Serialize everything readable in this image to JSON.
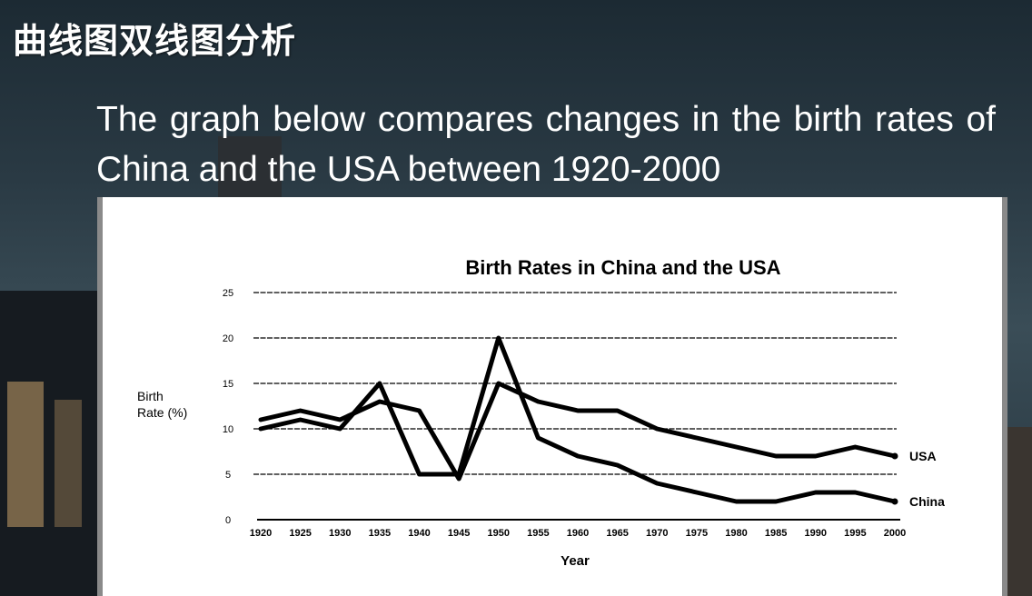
{
  "slide": {
    "title": "曲线图双线图分析",
    "text": "The graph below compares changes in the birth rates of China and the USA between 1920-2000"
  },
  "chart_data": {
    "type": "line",
    "title": "Birth Rates in China and the USA",
    "xlabel": "Year",
    "ylabel": "Birth\nRate (%)",
    "x": [
      1920,
      1925,
      1930,
      1935,
      1940,
      1945,
      1950,
      1955,
      1960,
      1965,
      1970,
      1975,
      1980,
      1985,
      1990,
      1995,
      2000
    ],
    "x_tick_labels": [
      "1920",
      "1925",
      "1930",
      "1935",
      "1940",
      "1945",
      "1950",
      "1955",
      "1960",
      "1965",
      "1970",
      "1975",
      "1980",
      "1985",
      "1990",
      "1995",
      "2000"
    ],
    "ylim": [
      0,
      25
    ],
    "y_ticks": [
      0,
      5,
      10,
      15,
      20,
      25
    ],
    "y_tick_labels": [
      "0",
      "5",
      "10",
      "15",
      "20",
      "25"
    ],
    "grid": true,
    "series": [
      {
        "name": "USA",
        "values": [
          11,
          12,
          11,
          13,
          12,
          4.5,
          15,
          13,
          12,
          12,
          10,
          9,
          8,
          7,
          7,
          8,
          7
        ]
      },
      {
        "name": "China",
        "values": [
          10,
          11,
          10,
          15,
          5,
          5,
          20,
          9,
          7,
          6,
          4,
          3,
          2,
          2,
          3,
          3,
          2
        ]
      }
    ],
    "line_color": "#000000"
  }
}
